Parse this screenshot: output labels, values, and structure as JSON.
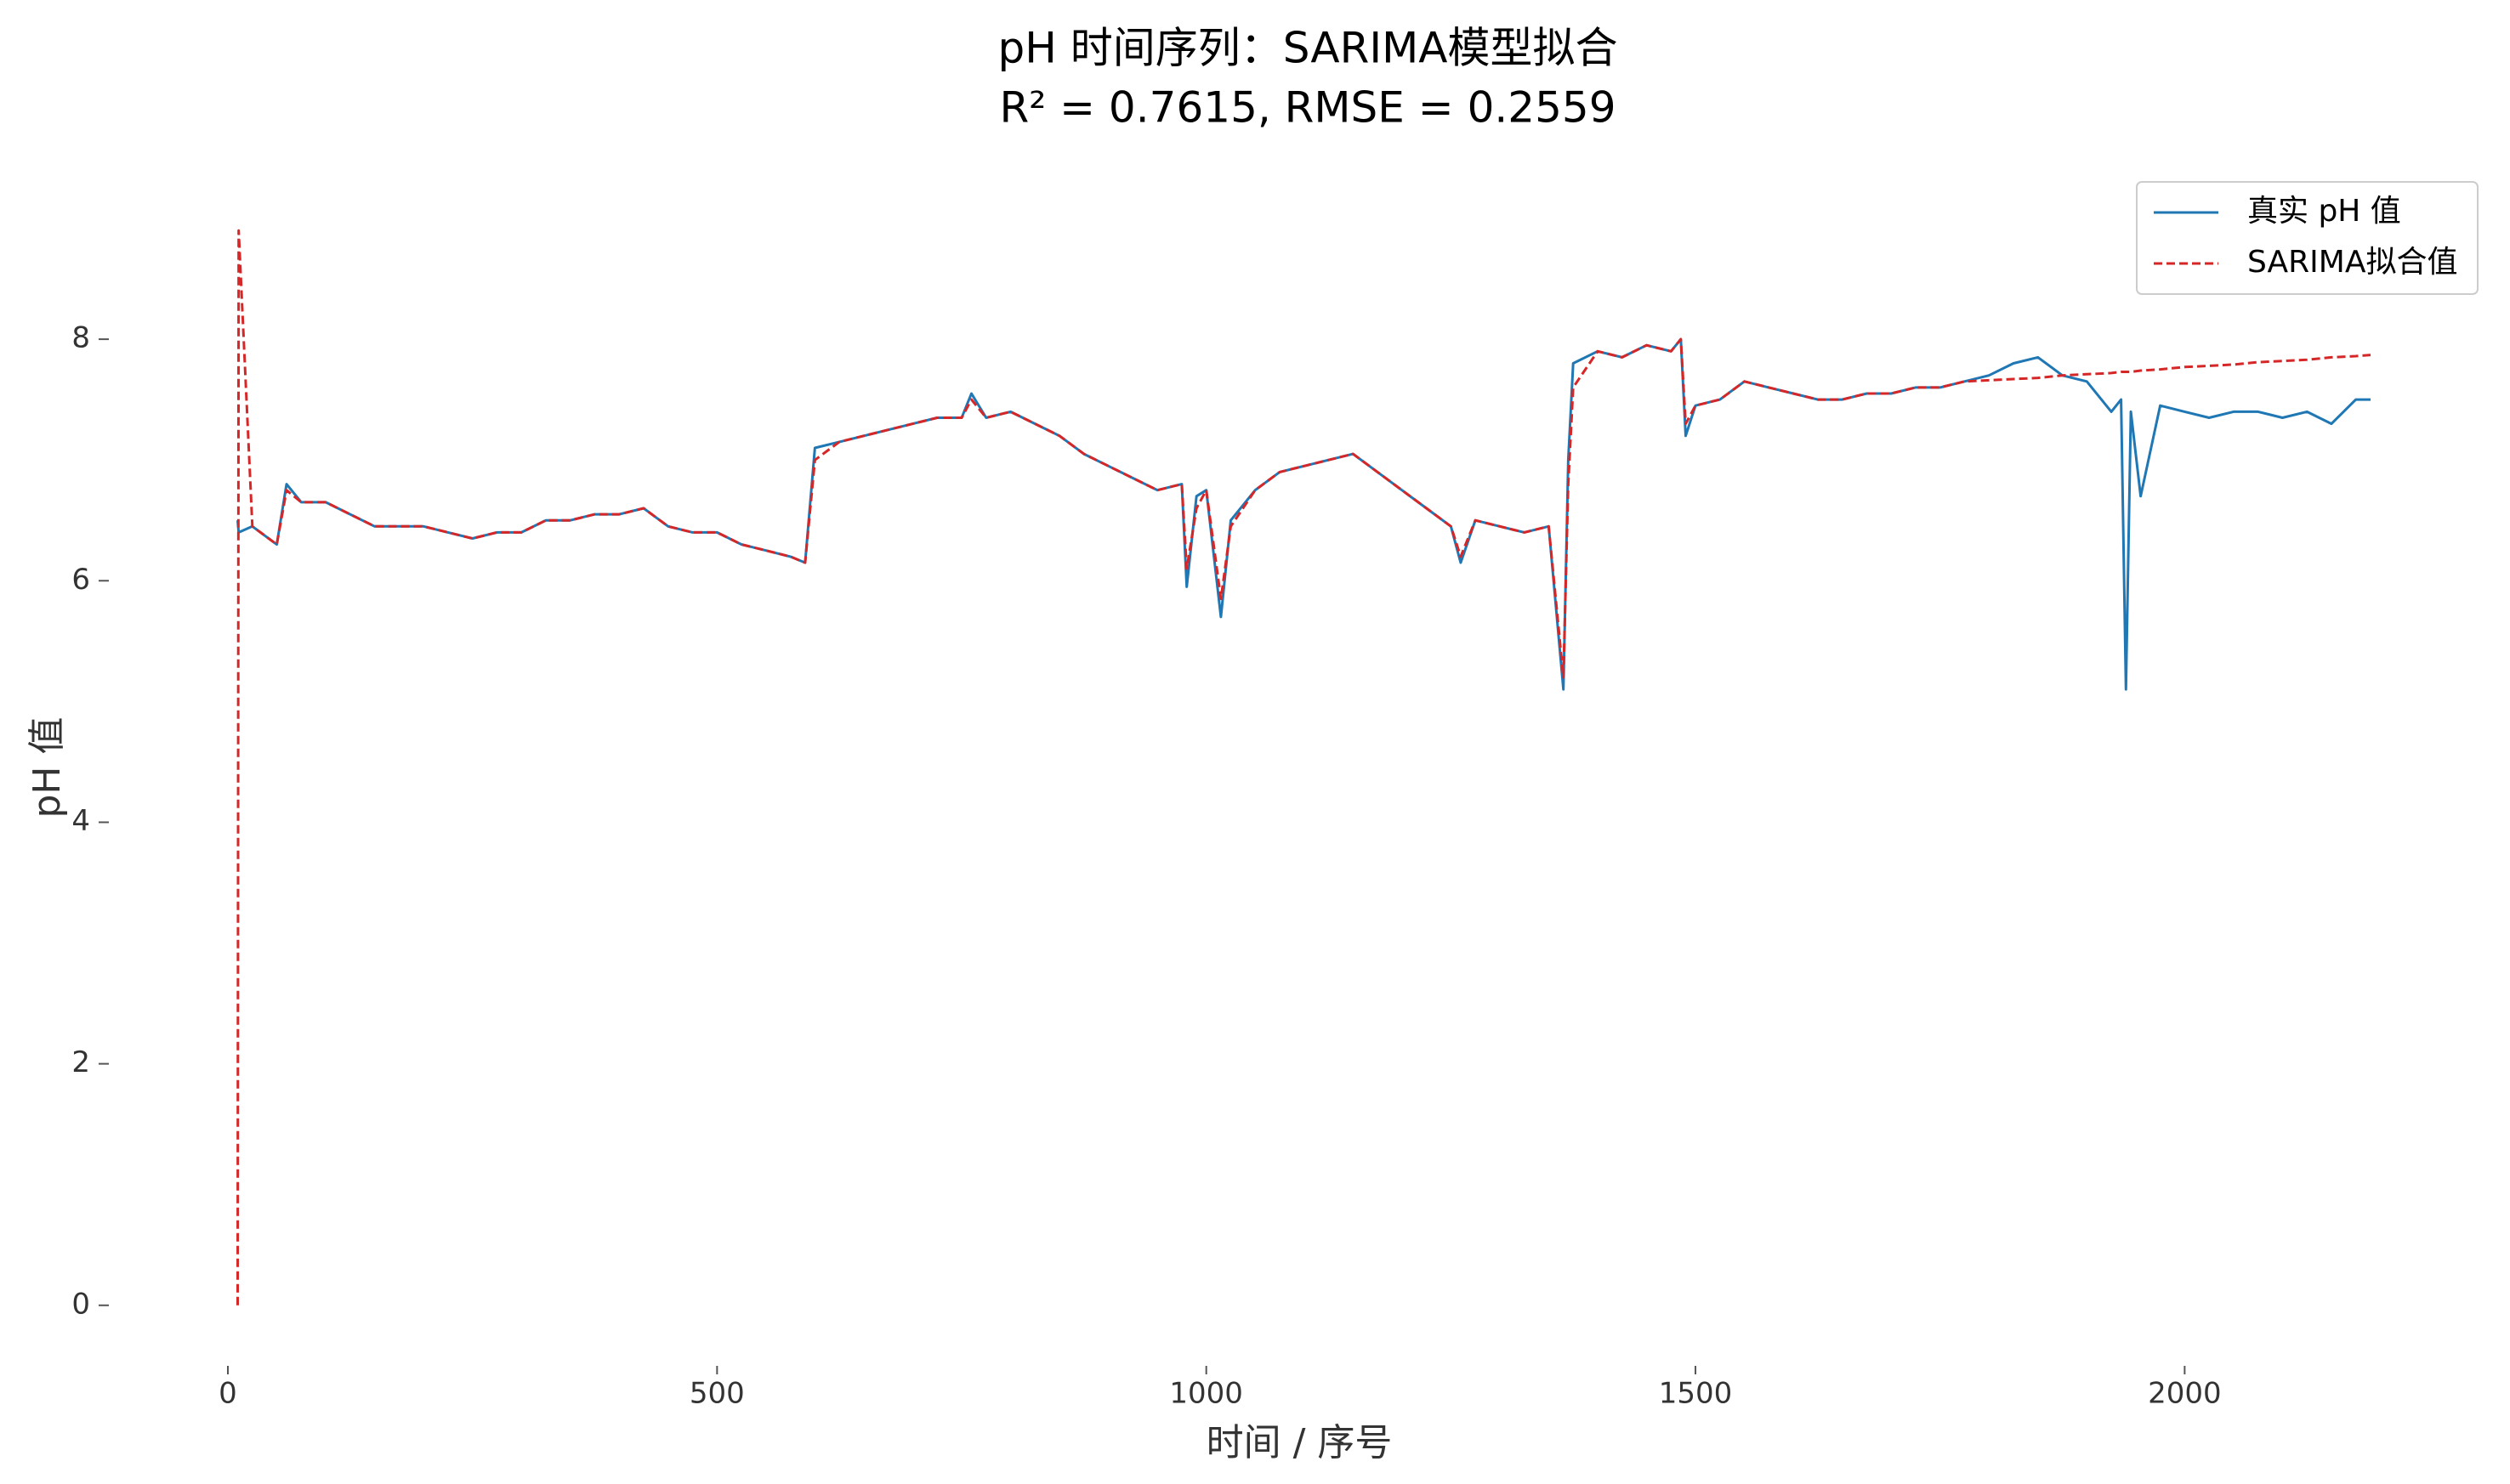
{
  "chart_data": {
    "type": "line",
    "title": "pH 时间序列：SARIMA模型拟合",
    "subtitle": "R² = 0.7615, RMSE = 0.2559",
    "xlabel": "时间 / 序号",
    "ylabel": "pH 值",
    "xlim": [
      -109.5,
      2299.5
    ],
    "ylim": [
      -0.445,
      9.345
    ],
    "xticks": [
      0,
      500,
      1000,
      1500,
      2000
    ],
    "yticks": [
      0,
      2,
      4,
      6,
      8
    ],
    "grid": false,
    "legend": "upper right",
    "x": [
      10,
      11,
      25,
      50,
      60,
      75,
      100,
      125,
      150,
      175,
      200,
      225,
      250,
      275,
      300,
      325,
      350,
      375,
      400,
      425,
      450,
      475,
      500,
      525,
      550,
      575,
      590,
      600,
      625,
      650,
      675,
      700,
      725,
      750,
      760,
      775,
      800,
      825,
      850,
      875,
      900,
      925,
      950,
      975,
      980,
      990,
      1000,
      1015,
      1025,
      1050,
      1075,
      1100,
      1125,
      1150,
      1175,
      1200,
      1225,
      1250,
      1260,
      1275,
      1300,
      1325,
      1350,
      1365,
      1370,
      1375,
      1400,
      1425,
      1450,
      1475,
      1485,
      1490,
      1500,
      1525,
      1550,
      1575,
      1600,
      1625,
      1650,
      1675,
      1700,
      1725,
      1750,
      1775,
      1800,
      1825,
      1850,
      1875,
      1900,
      1925,
      1935,
      1940,
      1945,
      1955,
      1975,
      2000,
      2025,
      2050,
      2075,
      2100,
      2125,
      2150,
      2175,
      2190
    ],
    "series": [
      {
        "name": "真实 pH 值",
        "color": "#1f77b4",
        "dash": false,
        "values": [
          6.5,
          6.4,
          6.45,
          6.3,
          6.8,
          6.65,
          6.65,
          6.55,
          6.45,
          6.45,
          6.45,
          6.4,
          6.35,
          6.4,
          6.4,
          6.5,
          6.5,
          6.55,
          6.55,
          6.6,
          6.45,
          6.4,
          6.4,
          6.3,
          6.25,
          6.2,
          6.15,
          7.1,
          7.15,
          7.2,
          7.25,
          7.3,
          7.35,
          7.35,
          7.55,
          7.35,
          7.4,
          7.3,
          7.2,
          7.05,
          6.95,
          6.85,
          6.75,
          6.8,
          5.95,
          6.7,
          6.75,
          5.7,
          6.5,
          6.75,
          6.9,
          6.95,
          7.0,
          7.05,
          6.9,
          6.75,
          6.6,
          6.45,
          6.15,
          6.5,
          6.45,
          6.4,
          6.45,
          5.1,
          7.0,
          7.8,
          7.9,
          7.85,
          7.95,
          7.9,
          8.0,
          7.2,
          7.45,
          7.5,
          7.65,
          7.6,
          7.55,
          7.5,
          7.5,
          7.55,
          7.55,
          7.6,
          7.6,
          7.65,
          7.7,
          7.8,
          7.85,
          7.7,
          7.65,
          7.4,
          7.5,
          5.1,
          7.4,
          6.7,
          7.45,
          7.4,
          7.35,
          7.4,
          7.4,
          7.35,
          7.4,
          7.3,
          7.5,
          7.5
        ]
      },
      {
        "name": "SARIMA拟合值",
        "color": "#d62728",
        "dash": true,
        "values": [
          0,
          8.9,
          6.45,
          6.3,
          6.75,
          6.65,
          6.65,
          6.55,
          6.45,
          6.45,
          6.45,
          6.4,
          6.35,
          6.4,
          6.4,
          6.5,
          6.5,
          6.55,
          6.55,
          6.6,
          6.45,
          6.4,
          6.4,
          6.3,
          6.25,
          6.2,
          6.15,
          7.0,
          7.15,
          7.2,
          7.25,
          7.3,
          7.35,
          7.35,
          7.5,
          7.35,
          7.4,
          7.3,
          7.2,
          7.05,
          6.95,
          6.85,
          6.75,
          6.8,
          6.1,
          6.6,
          6.75,
          5.85,
          6.45,
          6.75,
          6.9,
          6.95,
          7.0,
          7.05,
          6.9,
          6.75,
          6.6,
          6.45,
          6.2,
          6.5,
          6.45,
          6.4,
          6.45,
          5.2,
          6.8,
          7.6,
          7.9,
          7.85,
          7.95,
          7.9,
          8.0,
          7.3,
          7.45,
          7.5,
          7.65,
          7.6,
          7.55,
          7.5,
          7.5,
          7.55,
          7.55,
          7.6,
          7.6,
          7.65,
          7.66,
          7.67,
          7.68,
          7.7,
          7.71,
          7.72,
          7.73,
          7.73,
          7.73,
          7.74,
          7.75,
          7.77,
          7.78,
          7.79,
          7.81,
          7.82,
          7.83,
          7.85,
          7.86,
          7.87
        ]
      }
    ]
  }
}
